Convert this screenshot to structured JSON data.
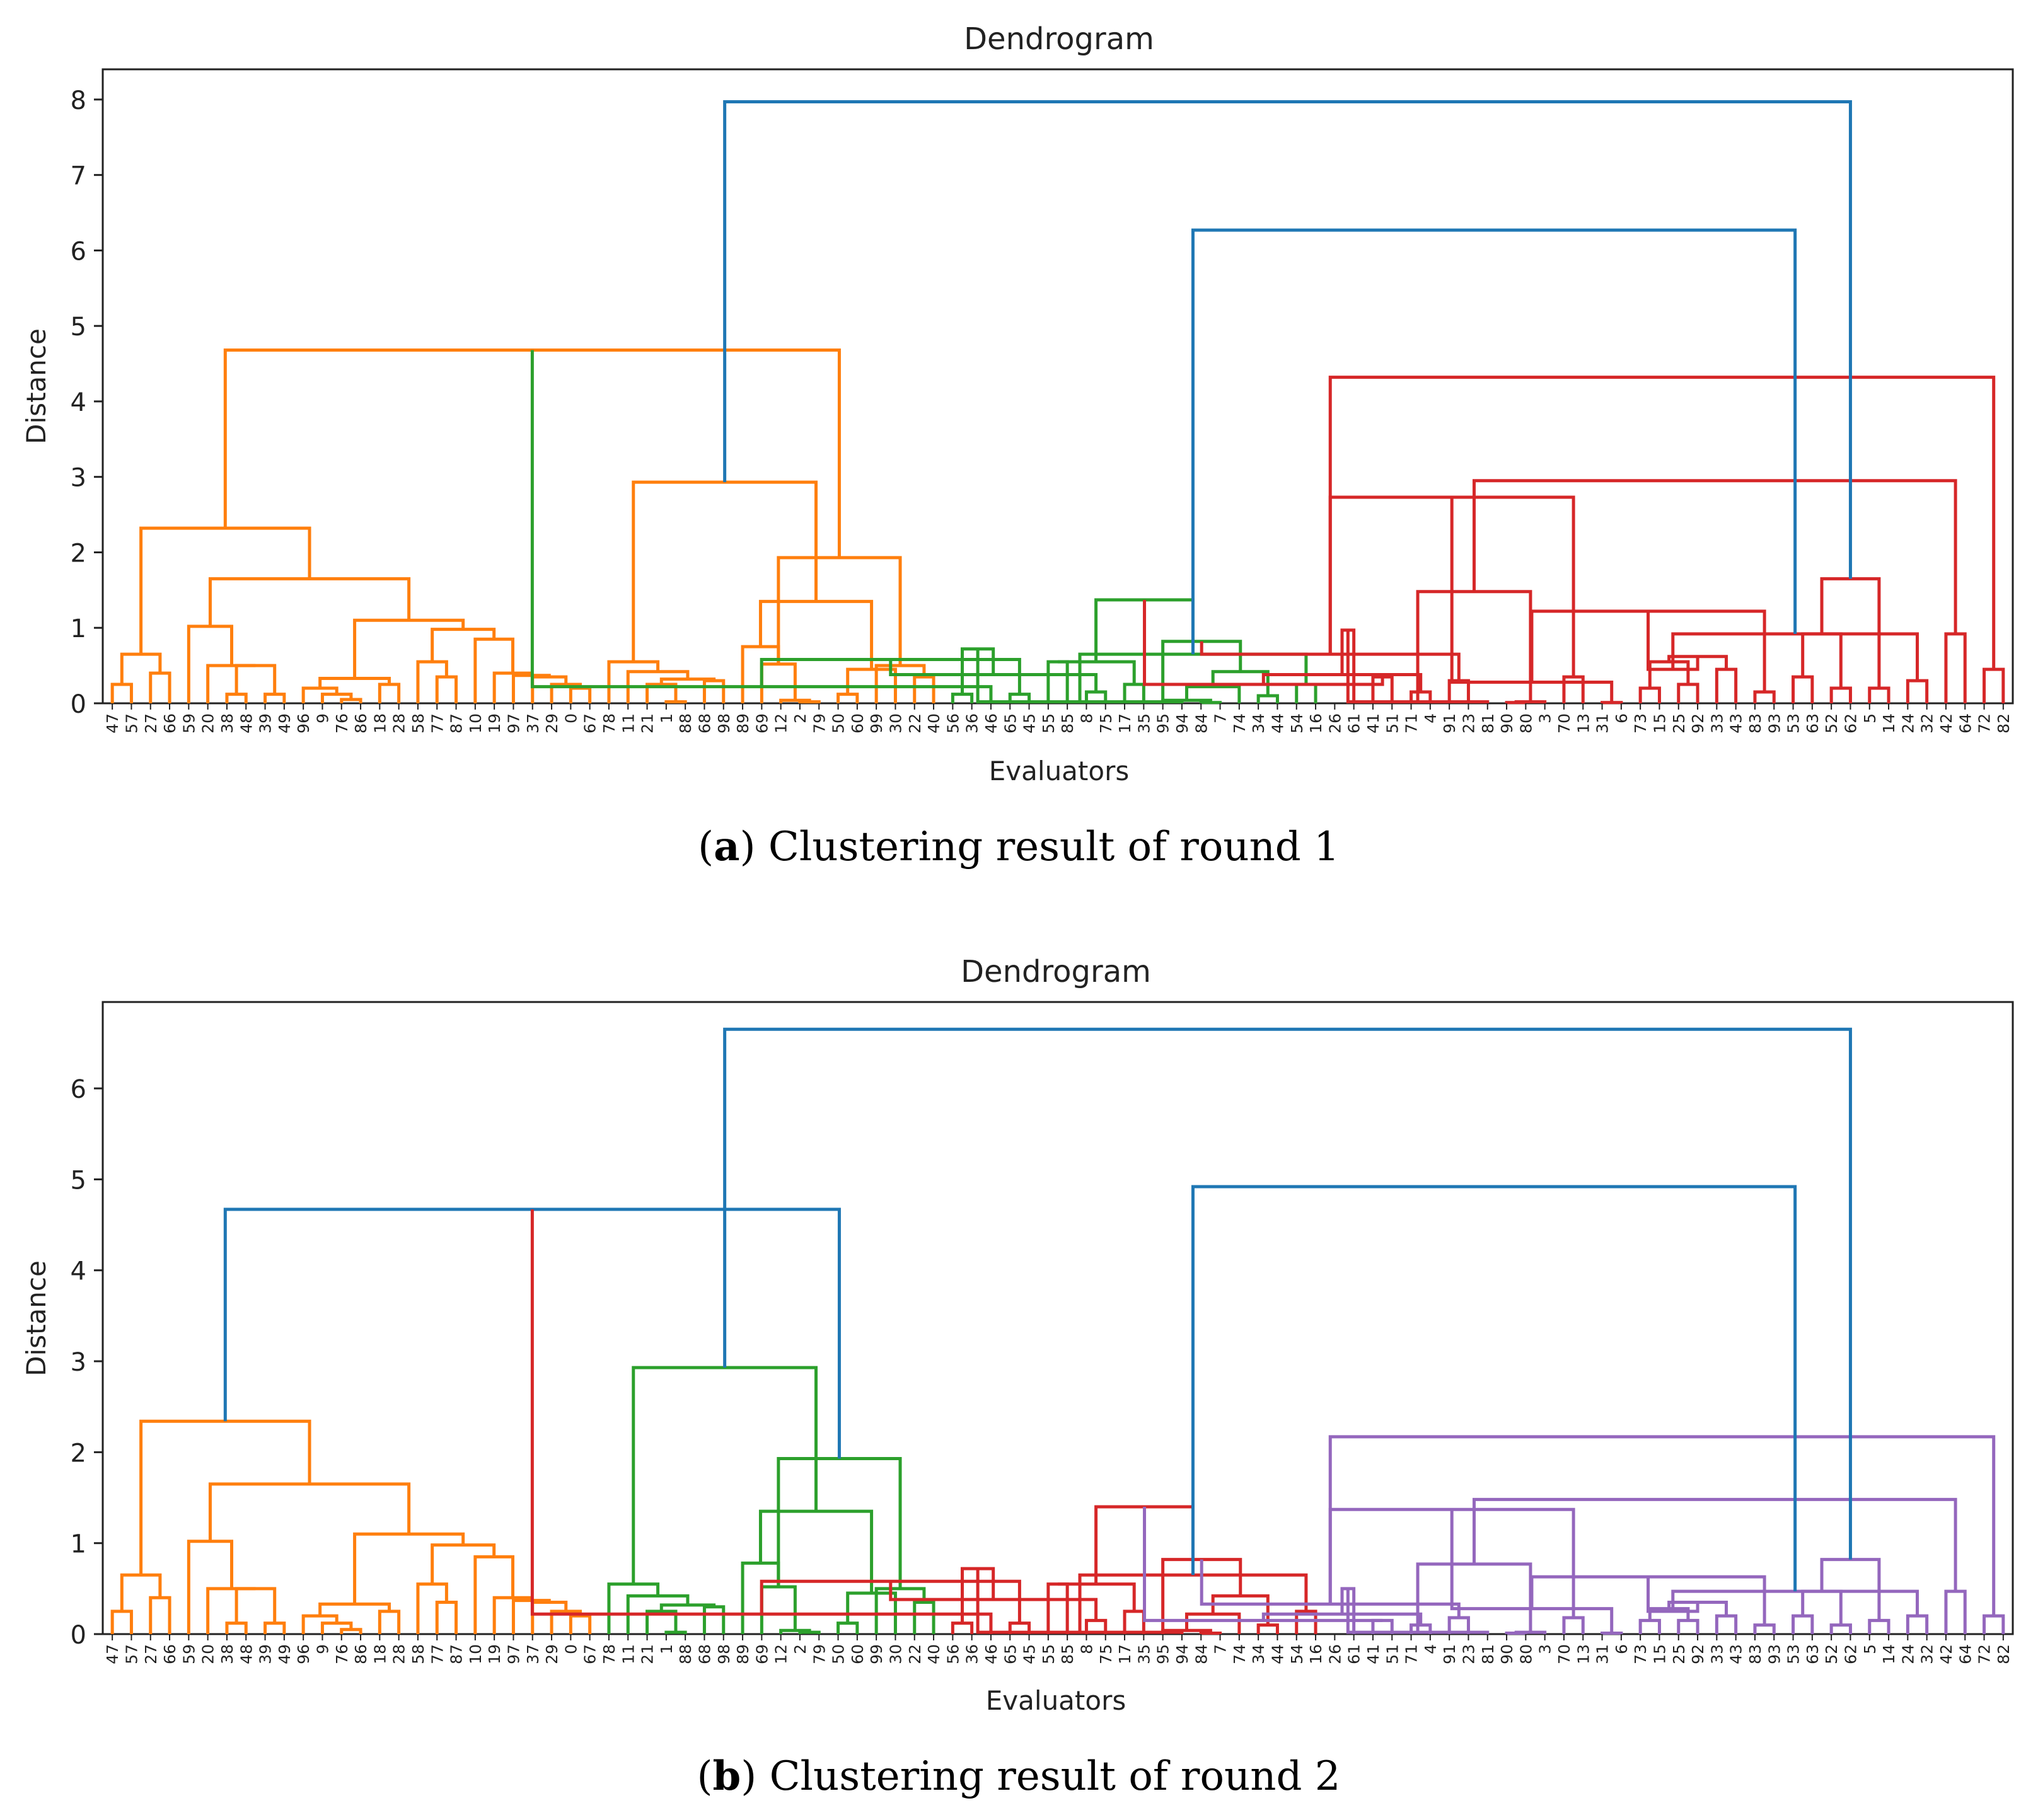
{
  "leaves": [
    "47",
    "57",
    "27",
    "66",
    "59",
    "20",
    "38",
    "48",
    "39",
    "49",
    "96",
    "9",
    "76",
    "86",
    "18",
    "28",
    "58",
    "77",
    "87",
    "10",
    "19",
    "97",
    "37",
    "29",
    "0",
    "67",
    "78",
    "11",
    "21",
    "1",
    "88",
    "68",
    "98",
    "89",
    "69",
    "12",
    "2",
    "79",
    "50",
    "60",
    "99",
    "30",
    "22",
    "40",
    "56",
    "36",
    "46",
    "65",
    "45",
    "55",
    "85",
    "8",
    "75",
    "17",
    "35",
    "95",
    "94",
    "84",
    "7",
    "74",
    "34",
    "44",
    "54",
    "16",
    "26",
    "61",
    "41",
    "51",
    "71",
    "4",
    "91",
    "23",
    "81",
    "90",
    "80",
    "3",
    "70",
    "13",
    "31",
    "6",
    "73",
    "15",
    "25",
    "92",
    "33",
    "43",
    "83",
    "93",
    "53",
    "63",
    "52",
    "62",
    "5",
    "14",
    "24",
    "32",
    "42",
    "64",
    "72",
    "82"
  ],
  "colors": {
    "blue": "#1f77b4",
    "orange": "#ff7f0e",
    "green": "#2ca02c",
    "red": "#d62728",
    "purple": "#9467bd"
  },
  "chart_data": [
    {
      "type": "dendrogram",
      "title": "Dendrogram",
      "xlabel": "Evaluators",
      "ylabel": "Distance",
      "ylim": [
        0,
        8.4
      ],
      "yticks": [
        0,
        1,
        2,
        3,
        4,
        5,
        6,
        7,
        8
      ],
      "caption_letter": "a",
      "caption_text": ") Clustering result of round 1",
      "merges": [
        [
          0,
          1,
          0.25,
          "orange"
        ],
        [
          2,
          3,
          0.4,
          "orange"
        ],
        [
          100,
          101,
          0.65,
          "orange"
        ],
        [
          6,
          7,
          0.12,
          "orange"
        ],
        [
          8,
          9,
          0.12,
          "orange"
        ],
        [
          103,
          104,
          0.5,
          "orange"
        ],
        [
          5,
          105,
          0.5,
          "orange"
        ],
        [
          4,
          106,
          1.02,
          "orange"
        ],
        [
          12,
          13,
          0.05,
          "orange"
        ],
        [
          11,
          108,
          0.12,
          "orange"
        ],
        [
          10,
          109,
          0.2,
          "orange"
        ],
        [
          14,
          15,
          0.25,
          "orange"
        ],
        [
          110,
          111,
          0.33,
          "orange"
        ],
        [
          17,
          18,
          0.35,
          "orange"
        ],
        [
          16,
          113,
          0.55,
          "orange"
        ],
        [
          24,
          25,
          0.2,
          "orange"
        ],
        [
          23,
          115,
          0.25,
          "orange"
        ],
        [
          22,
          116,
          0.35,
          "orange"
        ],
        [
          21,
          117,
          0.37,
          "orange"
        ],
        [
          20,
          118,
          0.4,
          "orange"
        ],
        [
          19,
          119,
          0.85,
          "orange"
        ],
        [
          114,
          120,
          0.98,
          "orange"
        ],
        [
          112,
          121,
          1.1,
          "orange"
        ],
        [
          107,
          122,
          1.65,
          "orange"
        ],
        [
          102,
          123,
          2.32,
          "orange"
        ],
        [
          29,
          30,
          0.02,
          "orange"
        ],
        [
          28,
          125,
          0.25,
          "orange"
        ],
        [
          31,
          32,
          0.3,
          "orange"
        ],
        [
          126,
          127,
          0.32,
          "orange"
        ],
        [
          27,
          128,
          0.42,
          "orange"
        ],
        [
          26,
          129,
          0.55,
          "orange"
        ],
        [
          36,
          37,
          0.02,
          "orange"
        ],
        [
          35,
          131,
          0.04,
          "orange"
        ],
        [
          34,
          132,
          0.52,
          "orange"
        ],
        [
          33,
          133,
          0.75,
          "orange"
        ],
        [
          38,
          39,
          0.12,
          "orange"
        ],
        [
          42,
          43,
          0.35,
          "orange"
        ],
        [
          41,
          135,
          0.45,
          "orange"
        ],
        [
          40,
          136,
          0.5,
          "orange"
        ],
        [
          134,
          137,
          1.35,
          "orange"
        ],
        [
          133,
          138,
          1.93,
          "orange"
        ],
        [
          130,
          139,
          2.93,
          "orange"
        ],
        [
          124,
          140,
          4.68,
          "orange"
        ],
        [
          44,
          45,
          0.12,
          "green"
        ],
        [
          46,
          142,
          0.22,
          "green"
        ],
        [
          47,
          48,
          0.12,
          "green"
        ],
        [
          49,
          50,
          0.55,
          "green"
        ],
        [
          144,
          145,
          0.58,
          "green"
        ],
        [
          51,
          52,
          0.15,
          "green"
        ],
        [
          53,
          54,
          0.25,
          "green"
        ],
        [
          147,
          148,
          0.38,
          "green"
        ],
        [
          146,
          149,
          0.55,
          "green"
        ],
        [
          143,
          150,
          0.72,
          "green"
        ],
        [
          57,
          58,
          0.01,
          "green"
        ],
        [
          56,
          152,
          0.02,
          "green"
        ],
        [
          55,
          153,
          0.04,
          "green"
        ],
        [
          60,
          61,
          0.1,
          "green"
        ],
        [
          59,
          155,
          0.22,
          "green"
        ],
        [
          62,
          63,
          0.25,
          "green"
        ],
        [
          156,
          157,
          0.42,
          "green"
        ],
        [
          154,
          158,
          0.65,
          "green"
        ],
        [
          159,
          55,
          0.82,
          "green"
        ],
        [
          151,
          160,
          1.37,
          "green"
        ],
        [
          66,
          67,
          0.35,
          "red"
        ],
        [
          68,
          69,
          0.15,
          "red"
        ],
        [
          162,
          163,
          0.25,
          "red"
        ],
        [
          70,
          71,
          0.3,
          "red"
        ],
        [
          164,
          165,
          0.38,
          "red"
        ],
        [
          161,
          166,
          0.65,
          "red"
        ],
        [
          65,
          167,
          0.97,
          "red"
        ],
        [
          73,
          74,
          0.01,
          "red"
        ],
        [
          72,
          169,
          0.02,
          "red"
        ],
        [
          170,
          75,
          0.02,
          "red"
        ],
        [
          76,
          77,
          0.35,
          "red"
        ],
        [
          171,
          172,
          1.48,
          "red"
        ],
        [
          168,
          173,
          2.73,
          "red"
        ],
        [
          78,
          79,
          0.01,
          "red"
        ],
        [
          80,
          81,
          0.2,
          "red"
        ],
        [
          82,
          83,
          0.25,
          "red"
        ],
        [
          175,
          176,
          0.28,
          "red"
        ],
        [
          84,
          85,
          0.45,
          "red"
        ],
        [
          177,
          178,
          0.55,
          "red"
        ],
        [
          86,
          87,
          0.15,
          "red"
        ],
        [
          88,
          89,
          0.35,
          "red"
        ],
        [
          180,
          181,
          0.62,
          "red"
        ],
        [
          179,
          182,
          1.22,
          "red"
        ],
        [
          90,
          91,
          0.2,
          "red"
        ],
        [
          92,
          93,
          0.2,
          "red"
        ],
        [
          94,
          95,
          0.3,
          "red"
        ],
        [
          184,
          185,
          0.45,
          "red"
        ],
        [
          183,
          186,
          0.92,
          "red"
        ],
        [
          96,
          97,
          0.92,
          "red"
        ],
        [
          98,
          99,
          0.45,
          "red"
        ],
        [
          188,
          189,
          0.92,
          "red"
        ],
        [
          187,
          190,
          1.65,
          "red"
        ],
        [
          174,
          191,
          2.95,
          "red"
        ],
        [
          168,
          192,
          4.32,
          "red"
        ],
        [
          160,
          193,
          6.27,
          "blue"
        ],
        [
          141,
          194,
          7.97,
          "blue"
        ]
      ]
    },
    {
      "type": "dendrogram",
      "title": "Dendrogram",
      "xlabel": "Evaluators",
      "ylabel": "Distance",
      "ylim": [
        0,
        6.95
      ],
      "yticks": [
        0,
        1,
        2,
        3,
        4,
        5,
        6
      ],
      "caption_letter": "b",
      "caption_text": ") Clustering result of round 2",
      "merges": [
        [
          0,
          1,
          0.25,
          "orange"
        ],
        [
          2,
          3,
          0.4,
          "orange"
        ],
        [
          100,
          101,
          0.65,
          "orange"
        ],
        [
          6,
          7,
          0.12,
          "orange"
        ],
        [
          8,
          9,
          0.12,
          "orange"
        ],
        [
          103,
          104,
          0.5,
          "orange"
        ],
        [
          5,
          105,
          0.5,
          "orange"
        ],
        [
          4,
          106,
          1.02,
          "orange"
        ],
        [
          12,
          13,
          0.05,
          "orange"
        ],
        [
          11,
          108,
          0.12,
          "orange"
        ],
        [
          10,
          109,
          0.2,
          "orange"
        ],
        [
          14,
          15,
          0.25,
          "orange"
        ],
        [
          110,
          111,
          0.33,
          "orange"
        ],
        [
          17,
          18,
          0.35,
          "orange"
        ],
        [
          16,
          113,
          0.55,
          "orange"
        ],
        [
          24,
          25,
          0.2,
          "orange"
        ],
        [
          23,
          115,
          0.25,
          "orange"
        ],
        [
          22,
          116,
          0.35,
          "orange"
        ],
        [
          21,
          117,
          0.37,
          "orange"
        ],
        [
          20,
          118,
          0.4,
          "orange"
        ],
        [
          19,
          119,
          0.85,
          "orange"
        ],
        [
          114,
          120,
          0.98,
          "orange"
        ],
        [
          112,
          121,
          1.1,
          "orange"
        ],
        [
          107,
          122,
          1.65,
          "orange"
        ],
        [
          102,
          123,
          2.34,
          "orange"
        ],
        [
          29,
          30,
          0.02,
          "green"
        ],
        [
          28,
          125,
          0.25,
          "green"
        ],
        [
          31,
          32,
          0.3,
          "green"
        ],
        [
          126,
          127,
          0.32,
          "green"
        ],
        [
          27,
          128,
          0.42,
          "green"
        ],
        [
          26,
          129,
          0.55,
          "green"
        ],
        [
          36,
          37,
          0.02,
          "green"
        ],
        [
          35,
          131,
          0.04,
          "green"
        ],
        [
          34,
          132,
          0.52,
          "green"
        ],
        [
          33,
          133,
          0.78,
          "green"
        ],
        [
          38,
          39,
          0.12,
          "green"
        ],
        [
          42,
          43,
          0.35,
          "green"
        ],
        [
          41,
          135,
          0.45,
          "green"
        ],
        [
          40,
          136,
          0.5,
          "green"
        ],
        [
          134,
          137,
          1.35,
          "green"
        ],
        [
          133,
          138,
          1.93,
          "green"
        ],
        [
          130,
          139,
          2.93,
          "green"
        ],
        [
          124,
          140,
          4.67,
          "blue"
        ],
        [
          44,
          45,
          0.12,
          "red"
        ],
        [
          46,
          142,
          0.22,
          "red"
        ],
        [
          47,
          48,
          0.12,
          "red"
        ],
        [
          49,
          50,
          0.55,
          "red"
        ],
        [
          144,
          145,
          0.58,
          "red"
        ],
        [
          51,
          52,
          0.15,
          "red"
        ],
        [
          53,
          54,
          0.25,
          "red"
        ],
        [
          147,
          148,
          0.38,
          "red"
        ],
        [
          146,
          149,
          0.55,
          "red"
        ],
        [
          143,
          150,
          0.72,
          "red"
        ],
        [
          57,
          58,
          0.01,
          "red"
        ],
        [
          56,
          152,
          0.02,
          "red"
        ],
        [
          55,
          153,
          0.04,
          "red"
        ],
        [
          60,
          61,
          0.1,
          "red"
        ],
        [
          59,
          155,
          0.22,
          "red"
        ],
        [
          62,
          63,
          0.25,
          "red"
        ],
        [
          156,
          157,
          0.42,
          "red"
        ],
        [
          154,
          158,
          0.65,
          "red"
        ],
        [
          159,
          55,
          0.82,
          "red"
        ],
        [
          151,
          160,
          1.4,
          "red"
        ],
        [
          66,
          67,
          0.15,
          "purple"
        ],
        [
          68,
          69,
          0.1,
          "purple"
        ],
        [
          162,
          163,
          0.15,
          "purple"
        ],
        [
          70,
          71,
          0.18,
          "purple"
        ],
        [
          164,
          165,
          0.22,
          "purple"
        ],
        [
          161,
          166,
          0.33,
          "purple"
        ],
        [
          65,
          167,
          0.5,
          "purple"
        ],
        [
          73,
          74,
          0.01,
          "purple"
        ],
        [
          72,
          169,
          0.02,
          "purple"
        ],
        [
          170,
          75,
          0.02,
          "purple"
        ],
        [
          76,
          77,
          0.18,
          "purple"
        ],
        [
          171,
          172,
          0.77,
          "purple"
        ],
        [
          168,
          173,
          1.37,
          "purple"
        ],
        [
          78,
          79,
          0.01,
          "purple"
        ],
        [
          80,
          81,
          0.15,
          "purple"
        ],
        [
          82,
          83,
          0.15,
          "purple"
        ],
        [
          175,
          176,
          0.28,
          "purple"
        ],
        [
          84,
          85,
          0.2,
          "purple"
        ],
        [
          177,
          178,
          0.28,
          "purple"
        ],
        [
          86,
          87,
          0.1,
          "purple"
        ],
        [
          88,
          89,
          0.2,
          "purple"
        ],
        [
          180,
          181,
          0.35,
          "purple"
        ],
        [
          179,
          182,
          0.63,
          "purple"
        ],
        [
          90,
          91,
          0.1,
          "purple"
        ],
        [
          92,
          93,
          0.15,
          "purple"
        ],
        [
          94,
          95,
          0.2,
          "purple"
        ],
        [
          184,
          185,
          0.25,
          "purple"
        ],
        [
          183,
          186,
          0.47,
          "purple"
        ],
        [
          96,
          97,
          0.47,
          "purple"
        ],
        [
          98,
          99,
          0.2,
          "purple"
        ],
        [
          188,
          189,
          0.47,
          "purple"
        ],
        [
          187,
          190,
          0.82,
          "purple"
        ],
        [
          174,
          191,
          1.48,
          "purple"
        ],
        [
          168,
          192,
          2.17,
          "purple"
        ],
        [
          160,
          193,
          4.92,
          "blue"
        ],
        [
          141,
          194,
          6.65,
          "blue"
        ]
      ]
    }
  ]
}
